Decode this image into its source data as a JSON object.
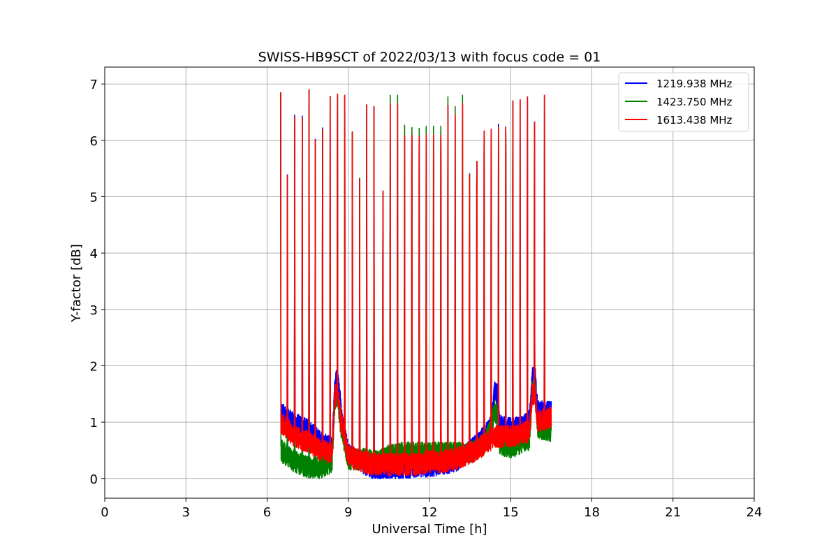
{
  "chart_data": {
    "type": "line",
    "title": "SWISS-HB9SCT of 2022/03/13 with focus code = 01",
    "xlabel": "Universal Time [h]",
    "ylabel": "Y-factor [dB]",
    "xlim": [
      0,
      24
    ],
    "ylim": [
      -0.35,
      7.3
    ],
    "xticks": [
      0,
      3,
      6,
      9,
      12,
      15,
      18,
      21,
      24
    ],
    "yticks": [
      0,
      1,
      2,
      3,
      4,
      5,
      6,
      7
    ],
    "grid": true,
    "legend_position": "top-right",
    "spikes": {
      "times": [
        6.5,
        6.75,
        7.02,
        7.3,
        7.55,
        7.78,
        8.05,
        8.33,
        8.6,
        8.87,
        9.15,
        9.42,
        9.68,
        9.95,
        10.28,
        10.55,
        10.82,
        11.08,
        11.35,
        11.62,
        11.88,
        12.15,
        12.42,
        12.68,
        12.95,
        13.22,
        13.48,
        13.75,
        14.02,
        14.28,
        14.55,
        14.82,
        15.08,
        15.35,
        15.62,
        15.88,
        16.25
      ],
      "peaks": [
        6.85,
        5.78,
        6.93,
        6.93,
        6.9,
        6.5,
        6.72,
        6.78,
        6.82,
        6.8,
        6.67,
        5.78,
        6.63,
        6.6,
        5.1,
        6.65,
        6.65,
        6.63,
        6.62,
        6.6,
        6.62,
        6.62,
        6.63,
        6.62,
        6.45,
        6.65,
        5.85,
        6.08,
        6.67,
        6.68,
        6.73,
        6.72,
        6.7,
        6.72,
        6.77,
        6.75,
        6.8
      ]
    },
    "series": [
      {
        "name": "1219.938 MHz",
        "color": "#0000ff",
        "baseline": {
          "x": [
            6.5,
            6.8,
            7.2,
            7.6,
            8.0,
            8.4,
            8.5,
            8.55,
            8.65,
            8.75,
            9.0,
            9.3,
            9.6,
            10.0,
            10.5,
            11.0,
            11.5,
            12.0,
            12.5,
            13.0,
            13.5,
            14.0,
            14.3,
            14.4,
            14.5,
            14.6,
            15.0,
            15.5,
            15.7,
            15.8,
            15.9,
            16.0,
            16.5
          ],
          "y": [
            1.2,
            1.05,
            0.95,
            0.85,
            0.65,
            0.55,
            1.6,
            1.75,
            1.7,
            1.1,
            0.45,
            0.35,
            0.25,
            0.12,
            0.1,
            0.15,
            0.2,
            0.2,
            0.25,
            0.3,
            0.5,
            0.75,
            0.95,
            1.55,
            1.5,
            0.95,
            0.9,
            0.95,
            1.05,
            1.8,
            1.85,
            1.2,
            1.2
          ],
          "noise": 0.18
        }
      },
      {
        "name": "1423.750 MHz",
        "color": "#008000",
        "baseline": {
          "x": [
            6.5,
            7.0,
            7.5,
            8.0,
            8.4,
            8.5,
            8.6,
            8.7,
            9.0,
            9.5,
            10.0,
            10.5,
            11.0,
            11.5,
            12.0,
            12.5,
            13.0,
            13.5,
            14.0,
            14.3,
            14.4,
            14.5,
            14.6,
            15.0,
            15.5,
            15.7,
            15.8,
            15.9,
            16.0,
            16.5
          ],
          "y": [
            0.5,
            0.3,
            0.2,
            0.2,
            0.3,
            1.4,
            1.5,
            1.0,
            0.35,
            0.35,
            0.3,
            0.4,
            0.45,
            0.45,
            0.45,
            0.45,
            0.45,
            0.45,
            0.6,
            0.9,
            1.2,
            1.15,
            0.6,
            0.55,
            0.65,
            0.7,
            1.6,
            1.65,
            0.9,
            0.85
          ],
          "noise": 0.2
        }
      },
      {
        "name": "1613.438 MHz",
        "color": "#ff0000",
        "baseline": {
          "x": [
            6.5,
            7.0,
            7.5,
            8.0,
            8.4,
            8.5,
            8.6,
            8.7,
            9.0,
            9.5,
            10.0,
            10.5,
            11.0,
            11.5,
            12.0,
            12.5,
            13.0,
            13.5,
            14.0,
            14.3,
            14.4,
            14.5,
            14.6,
            15.0,
            15.5,
            15.7,
            15.8,
            15.9,
            16.0,
            16.5
          ],
          "y": [
            1.0,
            0.75,
            0.65,
            0.5,
            0.45,
            1.45,
            1.55,
            1.1,
            0.4,
            0.3,
            0.25,
            0.25,
            0.25,
            0.25,
            0.3,
            0.3,
            0.35,
            0.45,
            0.6,
            0.7,
            0.75,
            0.75,
            0.75,
            0.75,
            0.8,
            0.85,
            1.5,
            1.5,
            1.0,
            1.1
          ],
          "noise": 0.2
        }
      }
    ]
  }
}
